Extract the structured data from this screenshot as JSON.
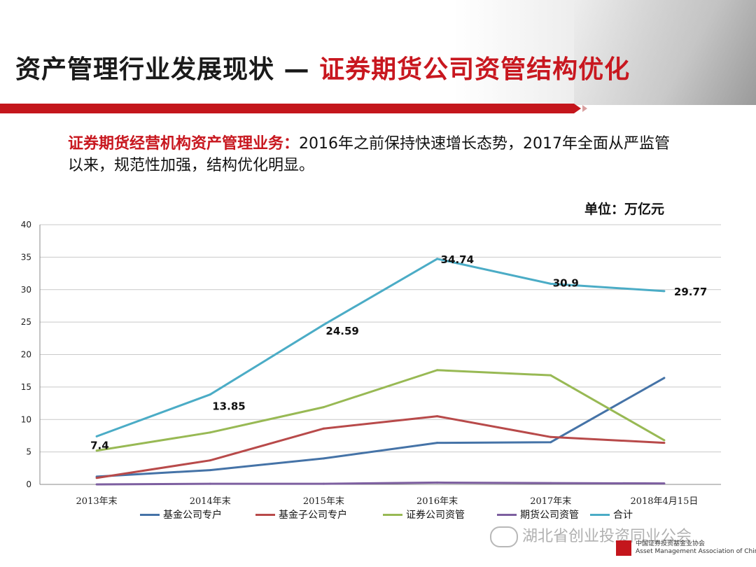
{
  "header": {
    "title_part1": "资产管理行业发展现状 —",
    "title_part2": "证券期货公司资管结构优化"
  },
  "subtitle": {
    "highlight": "证券期货经营机构资产管理业务：",
    "text": "2016年之前保持快速增长态势，2017年全面从严监管以来，规范性加强，结构优化明显。"
  },
  "unit_label": "单位：万亿元",
  "chart_data": {
    "type": "line",
    "categories": [
      "2013年末",
      "2014年末",
      "2015年末",
      "2016年末",
      "2017年末",
      "2018年4月15日"
    ],
    "ylim": [
      0,
      40
    ],
    "yticks": [
      0,
      5,
      10,
      15,
      20,
      25,
      30,
      35,
      40
    ],
    "grid": true,
    "legend_position": "bottom",
    "series": [
      {
        "name": "基金公司专户",
        "color": "#4573a7",
        "values": [
          1.2,
          2.2,
          4.0,
          6.4,
          6.5,
          16.4
        ],
        "labels": []
      },
      {
        "name": "基金子公司专户",
        "color": "#b84a4a",
        "values": [
          1.0,
          3.7,
          8.6,
          10.5,
          7.3,
          6.4
        ],
        "labels": []
      },
      {
        "name": "证券公司资管",
        "color": "#98b954",
        "values": [
          5.2,
          8.0,
          11.9,
          17.6,
          16.8,
          6.8
        ],
        "labels": []
      },
      {
        "name": "期货公司资管",
        "color": "#7d5fa0",
        "values": [
          0.0,
          0.1,
          0.1,
          0.28,
          0.2,
          0.15
        ],
        "labels": []
      },
      {
        "name": "合计",
        "color": "#4bacc6",
        "values": [
          7.4,
          13.85,
          24.59,
          34.74,
          30.9,
          29.77
        ],
        "labels": [
          "7.4",
          "13.85",
          "24.59",
          "34.74",
          "30.9",
          "29.77"
        ]
      }
    ]
  },
  "watermark": "湖北省创业投资同业公会",
  "association": {
    "name_cn": "中国证券投资基金业协会",
    "name_en": "Asset Management Association of China"
  }
}
